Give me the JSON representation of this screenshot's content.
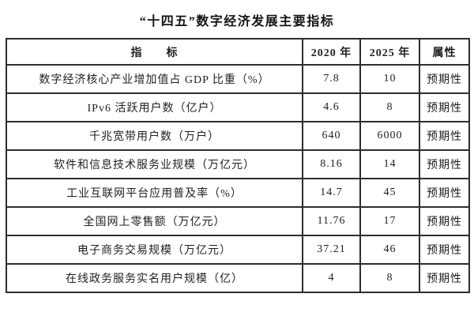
{
  "title": "“十四五”数字经济发展主要指标",
  "table": {
    "headers": {
      "indicator": "指　　标",
      "y2020": "2020 年",
      "y2025": "2025 年",
      "attr": "属性"
    },
    "rows": [
      {
        "indicator": "数字经济核心产业增加值占 GDP 比重（%）",
        "y2020": "7.8",
        "y2025": "10",
        "attr": "预期性"
      },
      {
        "indicator": "IPv6 活跃用户数（亿户）",
        "y2020": "4.6",
        "y2025": "8",
        "attr": "预期性"
      },
      {
        "indicator": "千兆宽带用户数（万户）",
        "y2020": "640",
        "y2025": "6000",
        "attr": "预期性"
      },
      {
        "indicator": "软件和信息技术服务业规模（万亿元）",
        "y2020": "8.16",
        "y2025": "14",
        "attr": "预期性"
      },
      {
        "indicator": "工业互联网平台应用普及率（%）",
        "y2020": "14.7",
        "y2025": "45",
        "attr": "预期性"
      },
      {
        "indicator": "全国网上零售额（万亿元）",
        "y2020": "11.76",
        "y2025": "17",
        "attr": "预期性"
      },
      {
        "indicator": "电子商务交易规模（万亿元）",
        "y2020": "37.21",
        "y2025": "46",
        "attr": "预期性"
      },
      {
        "indicator": "在线政务服务实名用户规模（亿）",
        "y2020": "4",
        "y2025": "8",
        "attr": "预期性"
      }
    ]
  }
}
